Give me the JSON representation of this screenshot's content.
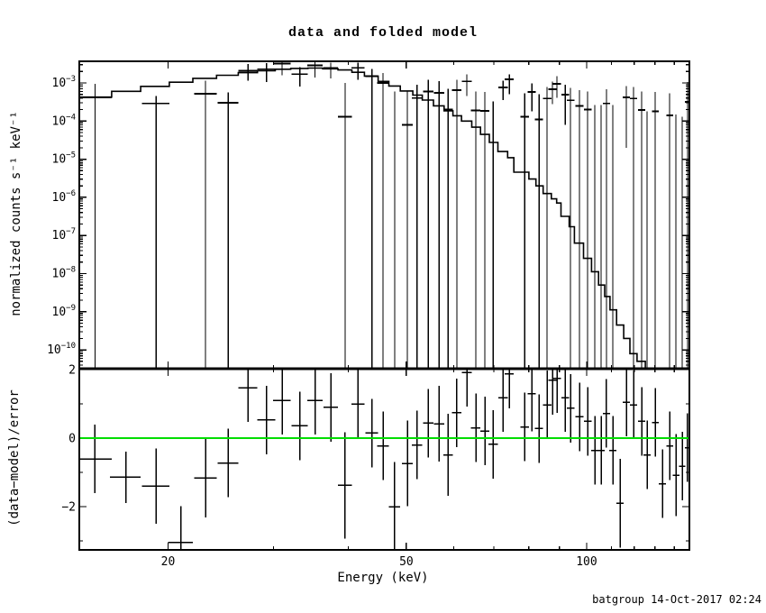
{
  "title": "data and folded model",
  "footer": "batgroup 14-Oct-2017 02:24",
  "chart_data": {
    "type": "scatter",
    "style": "xspec-spectrum-with-residuals",
    "title": "data and folded model",
    "x_axis": {
      "label": "Energy (keV)",
      "scale": "log",
      "range_keV": [
        14.2,
        148.5
      ],
      "major_ticks": [
        {
          "value": 20,
          "label": "20"
        },
        {
          "value": 50,
          "label": "50"
        },
        {
          "value": 100,
          "label": "100"
        }
      ],
      "minor_ticks": [
        30,
        40,
        60,
        70,
        80,
        90,
        110,
        120,
        130,
        140
      ]
    },
    "top_panel": {
      "ylabel": "normalized counts s⁻¹ keV⁻¹",
      "scale": "log",
      "range_log10": [
        -2.43,
        -10.49
      ],
      "decade_ticks": [
        -3,
        -4,
        -5,
        -6,
        -7,
        -8,
        -9,
        -10
      ],
      "grid": false
    },
    "bottom_panel": {
      "ylabel": "(data−model)/error",
      "range": [
        -3.26,
        2.0
      ],
      "major_ticks": [
        {
          "value": 2,
          "label": "2"
        },
        {
          "value": 0,
          "label": "0"
        },
        {
          "value": -2,
          "label": "−2"
        }
      ],
      "minor_ticks": [
        1,
        -1,
        -3
      ],
      "zero_line_value": 0
    },
    "colors": {
      "foreground": "#000000",
      "background": "#ffffff",
      "zero_line": "#00dd00"
    },
    "legend": null,
    "bin_format": [
      "E_center_keV",
      "E_halfwidth_keV",
      "model_log10_counts",
      "data_value",
      "err_upper_tip",
      "err_lower_tip",
      "residual",
      "residual_error"
    ],
    "bins": [
      [
        15.1,
        1.0,
        -3.37,
        0.00042,
        0.00095,
        null,
        -0.61,
        1.0
      ],
      [
        17.0,
        1.0,
        -3.22,
        null,
        null,
        null,
        -1.14,
        0.75
      ],
      [
        19.1,
        1.0,
        -3.09,
        0.00029,
        0.00046,
        null,
        -1.4,
        1.1
      ],
      [
        21.0,
        1.0,
        -2.98,
        null,
        null,
        null,
        -3.04,
        1.05
      ],
      [
        23.1,
        1.0,
        -2.88,
        0.00052,
        0.00115,
        null,
        -1.16,
        1.15
      ],
      [
        25.2,
        1.0,
        -2.8,
        0.0003,
        0.00056,
        null,
        -0.73,
        1.0
      ],
      [
        27.2,
        1.0,
        -2.73,
        0.0021,
        0.0031,
        0.00115,
        1.47,
        1.0
      ],
      [
        29.2,
        1.0,
        -2.68,
        0.0023,
        0.0033,
        0.00105,
        0.53,
        1.0
      ],
      [
        31.0,
        1.05,
        -2.64,
        0.0032,
        0.0037,
        0.0016,
        1.1,
        1.0
      ],
      [
        33.2,
        1.05,
        -2.62,
        0.0017,
        0.0026,
        0.0008,
        0.36,
        1.0
      ],
      [
        35.2,
        1.05,
        -2.61,
        0.0029,
        0.0037,
        0.0014,
        1.1,
        1.0
      ],
      [
        37.4,
        1.05,
        -2.63,
        0.0025,
        0.0034,
        0.0013,
        0.9,
        1.0
      ],
      [
        39.5,
        1.05,
        -2.66,
        0.00013,
        0.001,
        null,
        -1.38,
        1.55
      ],
      [
        41.5,
        1.05,
        -2.72,
        0.0025,
        0.0034,
        0.0012,
        1.0,
        1.0
      ],
      [
        43.8,
        1.05,
        -2.82,
        0.0015,
        0.0023,
        null,
        0.15,
        1.0
      ],
      [
        45.7,
        1.05,
        -2.96,
        0.001,
        0.0018,
        null,
        -0.23,
        1.0
      ],
      [
        47.8,
        1.05,
        -3.08,
        null,
        0.0006,
        null,
        -2.0,
        1.3
      ],
      [
        50.2,
        1.05,
        -3.21,
        8e-05,
        0.0006,
        null,
        -0.74,
        1.25
      ],
      [
        52.1,
        1.05,
        -3.32,
        0.0004,
        0.0009,
        null,
        -0.2,
        1.0
      ],
      [
        54.4,
        1.1,
        -3.45,
        0.0006,
        0.0012,
        null,
        0.44,
        1.0
      ],
      [
        56.7,
        1.1,
        -3.6,
        0.00055,
        0.0011,
        null,
        0.42,
        1.1
      ],
      [
        58.7,
        1.1,
        -3.73,
        0.0002,
        0.0007,
        null,
        -0.49,
        1.2
      ],
      [
        60.7,
        1.1,
        -3.86,
        0.00065,
        0.0012,
        null,
        0.74,
        1.0
      ],
      [
        63.1,
        1.2,
        -4.0,
        0.0011,
        0.0017,
        0.00045,
        1.92,
        1.0
      ],
      [
        65.3,
        1.2,
        -4.16,
        0.00019,
        0.00059,
        null,
        0.3,
        1.0
      ],
      [
        67.6,
        1.2,
        -4.35,
        0.000185,
        0.00058,
        null,
        0.21,
        1.0
      ],
      [
        69.8,
        1.3,
        -4.56,
        null,
        0.00033,
        null,
        -0.18,
        1.0
      ],
      [
        72.5,
        1.3,
        -4.8,
        0.00076,
        0.00115,
        0.00036,
        1.18,
        1.0
      ],
      [
        74.3,
        1.3,
        -4.96,
        0.00124,
        0.0017,
        0.0005,
        1.87,
        1.0
      ],
      [
        78.8,
        1.3,
        -5.34,
        0.00013,
        0.00053,
        null,
        0.33,
        1.0
      ],
      [
        81.0,
        1.3,
        -5.52,
        0.00058,
        0.00098,
        0.00018,
        1.3,
        1.1
      ],
      [
        83.3,
        1.3,
        -5.7,
        0.00011,
        0.00051,
        null,
        0.28,
        1.0
      ],
      [
        85.9,
        1.4,
        -5.9,
        0.00039,
        0.00079,
        null,
        0.97,
        1.0
      ],
      [
        87.7,
        1.4,
        -6.04,
        0.00068,
        0.00108,
        0.00028,
        1.69,
        1.0
      ],
      [
        89.2,
        1.4,
        -6.15,
        0.00095,
        0.00149,
        0.00041,
        1.74,
        1.0
      ],
      [
        92.1,
        1.4,
        -6.5,
        0.00049,
        0.0009,
        8e-05,
        1.18,
        1.0
      ],
      [
        94.0,
        1.4,
        -6.77,
        0.00035,
        0.00075,
        null,
        0.87,
        1.0
      ],
      [
        97.3,
        1.5,
        -7.2,
        0.00025,
        0.00065,
        null,
        0.62,
        1.0
      ],
      [
        100.4,
        1.5,
        -7.6,
        0.0002,
        0.0006,
        null,
        0.49,
        1.0
      ],
      [
        103.2,
        1.5,
        -7.95,
        null,
        0.00026,
        null,
        -0.36,
        1.0
      ],
      [
        105.7,
        1.5,
        -8.3,
        null,
        0.00026,
        null,
        -0.36,
        1.0
      ],
      [
        107.9,
        1.5,
        -8.6,
        0.00029,
        0.00069,
        null,
        0.72,
        1.0
      ],
      [
        110.6,
        1.6,
        -8.95,
        null,
        0.00026,
        null,
        -0.36,
        1.0
      ],
      [
        113.7,
        1.6,
        -9.35,
        null,
        null,
        null,
        -1.9,
        1.3
      ],
      [
        116.5,
        1.6,
        -9.7,
        0.00042,
        0.00082,
        2e-05,
        1.05,
        1.0
      ],
      [
        119.8,
        1.6,
        -10.1,
        0.00039,
        0.00079,
        null,
        0.97,
        1.0
      ],
      [
        123.6,
        1.7,
        -10.3,
        0.000195,
        0.00059,
        null,
        0.49,
        1.0
      ],
      [
        126.2,
        1.7,
        -10.6,
        null,
        0.00018,
        null,
        -0.49,
        1.0
      ],
      [
        130.2,
        1.7,
        -11.0,
        0.00018,
        0.00058,
        null,
        0.46,
        1.0
      ],
      [
        133.8,
        1.8,
        -11.4,
        null,
        null,
        null,
        -1.33,
        1.0
      ],
      [
        137.6,
        1.8,
        -11.8,
        0.00014,
        0.00054,
        null,
        -0.23,
        1.0
      ],
      [
        141.0,
        1.8,
        null,
        null,
        0.00015,
        null,
        -1.08,
        1.2
      ],
      [
        144.4,
        1.8,
        null,
        null,
        0.00013,
        null,
        -0.82,
        1.0
      ],
      [
        147.4,
        1.4,
        null,
        0.00032,
        0.00105,
        null,
        -0.28,
        1.0
      ]
    ]
  }
}
